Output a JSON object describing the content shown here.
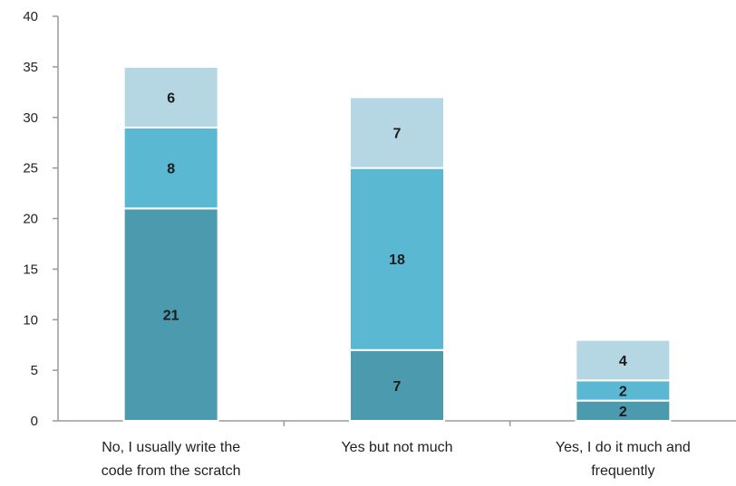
{
  "chart_data": {
    "type": "bar",
    "stacked": true,
    "title": "",
    "xlabel": "",
    "ylabel": "",
    "ylim": [
      0,
      40
    ],
    "yticks": [
      0,
      5,
      10,
      15,
      20,
      25,
      30,
      35,
      40
    ],
    "grid": false,
    "legend": "none",
    "categories": [
      [
        "No, I usually write the",
        "code from the scratch"
      ],
      [
        "Yes but not much"
      ],
      [
        "Yes, I do it much and",
        "frequently"
      ]
    ],
    "series": [
      {
        "values": [
          21,
          7,
          2
        ],
        "color": "#4b9aad"
      },
      {
        "values": [
          8,
          18,
          2
        ],
        "color": "#5bb8d3"
      },
      {
        "values": [
          6,
          7,
          4
        ],
        "color": "#b4d7e3"
      }
    ],
    "axis_color": "#9a9a9a"
  }
}
